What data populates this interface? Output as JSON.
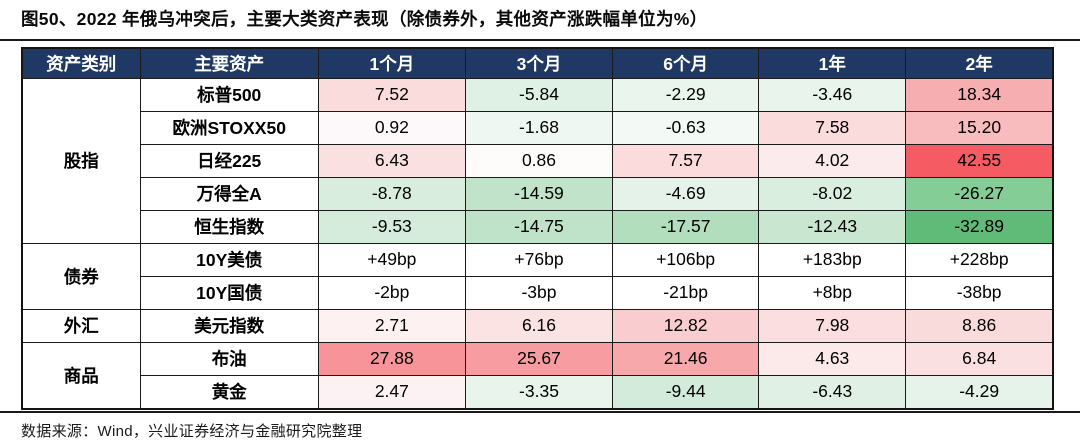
{
  "title": "图50、2022 年俄乌冲突后，主要大类资产表现（除债券外，其他资产涨跌幅单位为%）",
  "footer": {
    "source": "数据来源：Wind，兴业证券经济与金融研究院整理"
  },
  "colors": {
    "header_bg": "#1F3864",
    "header_text": "#FFFFFF",
    "border": "#1A1A1A",
    "strong_positive": "#F45B63",
    "strong_negative": "#5FBB77"
  },
  "chart_data": {
    "type": "table",
    "title": "2022 年俄乌冲突后，主要大类资产表现（除债券外，其他资产涨跌幅单位为%）",
    "columns": [
      "资产类别",
      "主要资产",
      "1个月",
      "3个月",
      "6个月",
      "1年",
      "2年"
    ],
    "groups": [
      {
        "category": "股指",
        "rows": [
          {
            "asset": "标普500",
            "values": [
              "7.52",
              "-5.84",
              "-2.29",
              "-3.46",
              "18.34"
            ],
            "cell_colors": [
              "#FADCDD",
              "#DFF0E5",
              "#EAF5EE",
              "#E8F4EC",
              "#F7AEB1"
            ]
          },
          {
            "asset": "欧洲STOXX50",
            "values": [
              "0.92",
              "-1.68",
              "-0.63",
              "7.58",
              "15.20"
            ],
            "cell_colors": [
              "#FDF8F9",
              "#EFF7F2",
              "#F3FAF6",
              "#FBDCDD",
              "#F8BCBE"
            ]
          },
          {
            "asset": "日经225",
            "values": [
              "6.43",
              "0.86",
              "7.57",
              "4.02",
              "42.55"
            ],
            "cell_colors": [
              "#FBE0E1",
              "#FEFBFB",
              "#FBDBDC",
              "#FCEBEC",
              "#F45B63"
            ]
          },
          {
            "asset": "万得全A",
            "values": [
              "-8.78",
              "-14.59",
              "-4.69",
              "-8.02",
              "-26.27"
            ],
            "cell_colors": [
              "#D8EDDE",
              "#C0E3C9",
              "#E4F2E9",
              "#DAEEE0",
              "#84CD96"
            ]
          },
          {
            "asset": "恒生指数",
            "values": [
              "-9.53",
              "-14.75",
              "-17.57",
              "-12.43",
              "-32.89"
            ],
            "cell_colors": [
              "#D5EBDC",
              "#BFE3C8",
              "#B2DEBD",
              "#C8E6D0",
              "#5FBB77"
            ]
          }
        ]
      },
      {
        "category": "债券",
        "rows": [
          {
            "asset": "10Y美债",
            "values": [
              "+49bp",
              "+76bp",
              "+106bp",
              "+183bp",
              "+228bp"
            ],
            "cell_colors": [
              "#FFFFFF",
              "#FFFFFF",
              "#FFFFFF",
              "#FFFFFF",
              "#FFFFFF"
            ]
          },
          {
            "asset": "10Y国债",
            "values": [
              "-2bp",
              "-3bp",
              "-21bp",
              "+8bp",
              "-38bp"
            ],
            "cell_colors": [
              "#FFFFFF",
              "#FFFFFF",
              "#FFFFFF",
              "#FFFFFF",
              "#FFFFFF"
            ]
          }
        ]
      },
      {
        "category": "外汇",
        "rows": [
          {
            "asset": "美元指数",
            "values": [
              "2.71",
              "6.16",
              "12.82",
              "7.98",
              "8.86"
            ],
            "cell_colors": [
              "#FDF1F2",
              "#FBE2E3",
              "#F9CDCF",
              "#FBDFE0",
              "#FADBDC"
            ]
          }
        ]
      },
      {
        "category": "商品",
        "rows": [
          {
            "asset": "布油",
            "values": [
              "27.88",
              "25.67",
              "21.46",
              "4.63",
              "6.84"
            ],
            "cell_colors": [
              "#F69499",
              "#F79CA0",
              "#F7A8AB",
              "#FCE9EA",
              "#FBE0E1"
            ]
          },
          {
            "asset": "黄金",
            "values": [
              "2.47",
              "-3.35",
              "-9.44",
              "-6.43",
              "-4.29"
            ],
            "cell_colors": [
              "#FDF2F3",
              "#E8F4EC",
              "#D3EBDA",
              "#E0F0E5",
              "#E6F3EA"
            ]
          }
        ]
      }
    ]
  }
}
